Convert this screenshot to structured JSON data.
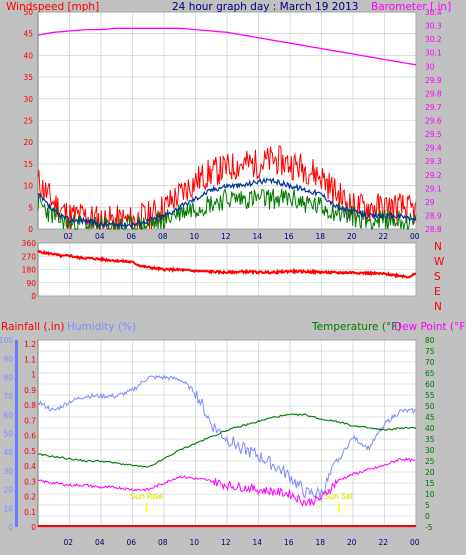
{
  "title": "24 hour graph day : March 19 2013",
  "colors": {
    "background": "#c0c0c0",
    "plot_bg": "#ffffff",
    "grid": "#c8c8c8",
    "red": "#ff0000",
    "blue_dark": "#003399",
    "green": "#007a00",
    "magenta": "#ff00ff",
    "title_blue": "#000080",
    "humidity_blue": "#7a8cff",
    "rain_blue": "#6e78ff",
    "sun_yellow": "#ffff00"
  },
  "chart_data": [
    {
      "type": "line",
      "ylabel": "Windspeed [mph]",
      "y2label": "Barometer [.in]",
      "ylim": [
        0,
        50
      ],
      "y2lim": [
        28.8,
        30.4
      ],
      "yticks": [
        "0",
        "5",
        "10",
        "15",
        "20",
        "25",
        "30",
        "35",
        "40",
        "45",
        "50"
      ],
      "y2ticks": [
        "28.8",
        "28.9",
        "29",
        "29.1",
        "29.2",
        "29.3",
        "29.4",
        "29.5",
        "29.6",
        "29.7",
        "29.8",
        "29.9",
        "30",
        "30.1",
        "30.2",
        "30.3",
        "30.4"
      ],
      "xticks": [
        "02",
        "04",
        "06",
        "08",
        "10",
        "12",
        "14",
        "16",
        "18",
        "20",
        "22",
        "00"
      ],
      "x": [
        0,
        1,
        2,
        3,
        4,
        5,
        6,
        7,
        8,
        9,
        10,
        11,
        12,
        13,
        14,
        15,
        16,
        17,
        18,
        19,
        20,
        21,
        22,
        23,
        24
      ],
      "series": [
        {
          "role": "gust",
          "color": "#ff0000",
          "values": [
            11,
            6,
            3,
            3,
            2,
            2,
            2,
            3,
            5,
            8,
            11,
            13,
            14,
            15,
            15,
            16,
            15,
            14,
            12,
            8,
            5,
            5,
            5,
            5,
            4
          ]
        },
        {
          "role": "average",
          "color": "#003399",
          "values": [
            8,
            4,
            2,
            2,
            1,
            1,
            1,
            2,
            3,
            5,
            7,
            9,
            10,
            10,
            11,
            11,
            10,
            9,
            8,
            5,
            4,
            3,
            3,
            3,
            2
          ]
        },
        {
          "role": "speed",
          "color": "#007a00",
          "values": [
            6,
            3,
            1,
            1,
            0.5,
            0.5,
            0.5,
            1,
            2,
            4,
            5,
            6,
            7,
            7,
            7,
            7,
            7,
            6,
            5,
            4,
            3,
            2,
            2,
            2,
            1
          ]
        },
        {
          "role": "barometer",
          "axis": "right",
          "color": "#ff00ff",
          "values": [
            30.23,
            30.25,
            30.26,
            30.27,
            30.27,
            30.28,
            30.28,
            30.28,
            30.28,
            30.28,
            30.27,
            30.26,
            30.25,
            30.23,
            30.21,
            30.19,
            30.17,
            30.15,
            30.13,
            30.11,
            30.09,
            30.07,
            30.05,
            30.03,
            30.01
          ]
        }
      ]
    },
    {
      "type": "line",
      "ylim": [
        0,
        360
      ],
      "yticks": [
        "0",
        "90",
        "180",
        "270",
        "360"
      ],
      "right_labels": [
        "N",
        "W",
        "S",
        "E",
        "N"
      ],
      "xticks": [
        "02",
        "04",
        "06",
        "08",
        "10",
        "12",
        "14",
        "16",
        "18",
        "20",
        "22",
        "00"
      ],
      "x": [
        0,
        0.5,
        1,
        1.5,
        2,
        2.5,
        3,
        4,
        5,
        6,
        6.5,
        7,
        8,
        9,
        10,
        11,
        12,
        13,
        14,
        15,
        16,
        17,
        18,
        19,
        20,
        21,
        22,
        23,
        23.5,
        24
      ],
      "series": [
        {
          "role": "wind_direction",
          "color": "#ff0000",
          "values": [
            300,
            292,
            285,
            270,
            275,
            262,
            258,
            250,
            240,
            230,
            205,
            195,
            180,
            178,
            170,
            165,
            160,
            165,
            162,
            160,
            168,
            165,
            162,
            158,
            160,
            155,
            150,
            138,
            130,
            150
          ]
        }
      ]
    },
    {
      "type": "line",
      "labels": {
        "rainfall": "Rainfall (.in)",
        "humidity": "Humidity (%)",
        "temperature": "Temperature (°F)",
        "dewpoint": "Dew Point (°F)"
      },
      "hum_ticks": [
        "0",
        "10",
        "20",
        "30",
        "40",
        "50",
        "60",
        "70",
        "80",
        "90",
        "100"
      ],
      "rain_ticks": [
        "0",
        "0.1",
        "0.2",
        "0.3",
        "0.4",
        "0.5",
        "0.6",
        "0.7",
        "0.8",
        "0.9",
        "1",
        "1.1",
        "1.2"
      ],
      "temp_ticks": [
        "-5",
        "0",
        "5",
        "10",
        "15",
        "20",
        "25",
        "30",
        "35",
        "40",
        "45",
        "50",
        "55",
        "60",
        "65",
        "70",
        "75",
        "80"
      ],
      "hum_lim": [
        0,
        100
      ],
      "temp_lim": [
        -5,
        80
      ],
      "xticks": [
        "02",
        "04",
        "06",
        "08",
        "10",
        "12",
        "14",
        "16",
        "18",
        "20",
        "22",
        "00"
      ],
      "sun_events": [
        {
          "label": "Sun Rise",
          "x": 6.9
        },
        {
          "label": "Sun Set",
          "x": 19.1
        }
      ],
      "x": [
        0,
        1,
        2,
        3,
        4,
        5,
        6,
        7,
        8,
        9,
        10,
        11,
        12,
        13,
        14,
        15,
        16,
        17,
        18,
        19,
        20,
        21,
        22,
        23,
        24
      ],
      "series": [
        {
          "role": "humidity",
          "axis": "hum",
          "color": "#7a8cff",
          "values": [
            67,
            62,
            67,
            70,
            70,
            70,
            73,
            80,
            80,
            79,
            72,
            55,
            47,
            42,
            38,
            33,
            27,
            18,
            18,
            35,
            48,
            42,
            55,
            62,
            62
          ]
        },
        {
          "role": "temperature",
          "axis": "temp",
          "color": "#007a00",
          "values": [
            28,
            27,
            26,
            25,
            25,
            24,
            23,
            22,
            26,
            30,
            33,
            36,
            39,
            41,
            43,
            45,
            46,
            46,
            44,
            43,
            41,
            40,
            39,
            40,
            40
          ]
        },
        {
          "role": "dewpoint",
          "axis": "temp",
          "color": "#ff00ff",
          "values": [
            16,
            15,
            14,
            14,
            13,
            13,
            12,
            12,
            15,
            18,
            17,
            16,
            14,
            13,
            12,
            11,
            10,
            6,
            8,
            16,
            19,
            21,
            23,
            26,
            25
          ]
        },
        {
          "role": "rainfall",
          "axis": "rain",
          "color": "#ff0000",
          "values": [
            0,
            0,
            0,
            0,
            0,
            0,
            0,
            0,
            0,
            0,
            0,
            0,
            0,
            0,
            0,
            0,
            0,
            0,
            0,
            0,
            0,
            0,
            0,
            0,
            0
          ]
        }
      ]
    }
  ]
}
